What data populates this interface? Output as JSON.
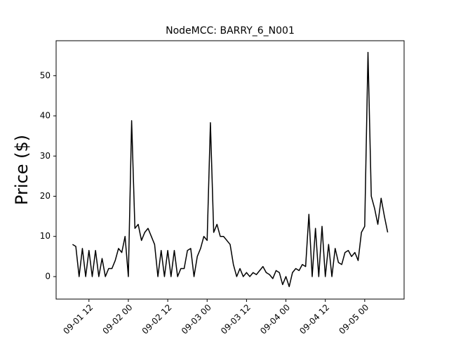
{
  "chart_data": {
    "type": "line",
    "title": "NodeMCC: BARRY_6_N001",
    "y_label": "Price ($)",
    "x": [
      "09-01 07",
      "09-01 08",
      "09-01 09",
      "09-01 10",
      "09-01 11",
      "09-01 12",
      "09-01 13",
      "09-01 14",
      "09-01 15",
      "09-01 16",
      "09-01 17",
      "09-01 18",
      "09-01 19",
      "09-01 20",
      "09-01 21",
      "09-01 22",
      "09-01 23",
      "09-02 00",
      "09-02 01",
      "09-02 02",
      "09-02 03",
      "09-02 04",
      "09-02 05",
      "09-02 06",
      "09-02 07",
      "09-02 08",
      "09-02 09",
      "09-02 10",
      "09-02 11",
      "09-02 12",
      "09-02 13",
      "09-02 14",
      "09-02 15",
      "09-02 16",
      "09-02 17",
      "09-02 18",
      "09-02 19",
      "09-02 20",
      "09-02 21",
      "09-02 22",
      "09-02 23",
      "09-03 00",
      "09-03 01",
      "09-03 02",
      "09-03 03",
      "09-03 04",
      "09-03 05",
      "09-03 06",
      "09-03 07",
      "09-03 08",
      "09-03 09",
      "09-03 10",
      "09-03 11",
      "09-03 12",
      "09-03 13",
      "09-03 14",
      "09-03 15",
      "09-03 16",
      "09-03 17",
      "09-03 18",
      "09-03 19",
      "09-03 20",
      "09-03 21",
      "09-03 22",
      "09-03 23",
      "09-04 00",
      "09-04 01",
      "09-04 02",
      "09-04 03",
      "09-04 04",
      "09-04 05",
      "09-04 06",
      "09-04 07",
      "09-04 08",
      "09-04 09",
      "09-04 10",
      "09-04 11",
      "09-04 12",
      "09-04 13",
      "09-04 14",
      "09-04 15",
      "09-04 16",
      "09-04 17",
      "09-04 18",
      "09-04 19",
      "09-04 20",
      "09-04 21",
      "09-04 22",
      "09-04 23",
      "09-05 00",
      "09-05 01",
      "09-05 02",
      "09-05 03",
      "09-05 04",
      "09-05 05",
      "09-05 06",
      "09-05 07"
    ],
    "series": [
      {
        "color": "#000000",
        "values": [
          8,
          7.5,
          0,
          7,
          0,
          6.5,
          0,
          6.5,
          0,
          4.5,
          0,
          2,
          2,
          4,
          7,
          6,
          10,
          0,
          38.8,
          12,
          13,
          9,
          11,
          12,
          10,
          8,
          0,
          6.5,
          0,
          6.5,
          0,
          6.5,
          0,
          2,
          2,
          6.5,
          7,
          0,
          5,
          7,
          10,
          9,
          38.3,
          11,
          13,
          10,
          10,
          9,
          8,
          3,
          0,
          2,
          0,
          1,
          0,
          1,
          0.5,
          1.5,
          2.5,
          1,
          0.5,
          -0.5,
          1.5,
          1,
          -2,
          0,
          -2.5,
          1,
          2,
          1.5,
          3,
          2.5,
          15.5,
          0,
          12,
          0,
          12.5,
          0,
          8,
          0,
          7,
          3.5,
          3,
          6,
          6.5,
          5,
          6,
          4,
          11,
          12.5,
          55.8,
          20,
          17,
          13,
          19.5,
          15,
          11
        ]
      }
    ],
    "xlim": [
      "09-01 02",
      "09-05 12"
    ],
    "xticks": [
      "09-01 12",
      "09-02 00",
      "09-02 12",
      "09-03 00",
      "09-03 12",
      "09-04 00",
      "09-04 12",
      "09-05 00"
    ],
    "ylim": [
      -5.6,
      58.7
    ],
    "yticks": [
      0,
      10,
      20,
      30,
      40,
      50
    ]
  }
}
